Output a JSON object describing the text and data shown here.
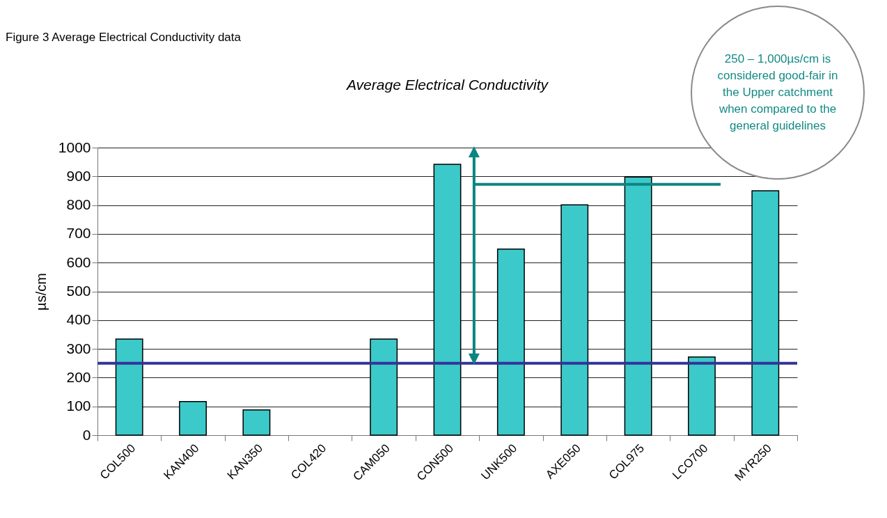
{
  "chart_data": {
    "type": "bar",
    "title": "Average Electrical Conductivity",
    "ylabel": "µs/cm",
    "categories": [
      "COL500",
      "KAN400",
      "KAN350",
      "COL420",
      "CAM050",
      "CON500",
      "UNK500",
      "AXE050",
      "COL975",
      "LCO700",
      "MYR250"
    ],
    "values": [
      334,
      117,
      88,
      null,
      334,
      942,
      647,
      801,
      898,
      272,
      850
    ],
    "color": "#3cc9c9",
    "ylim": [
      0,
      1000
    ],
    "yticks": [
      0,
      100,
      200,
      300,
      400,
      500,
      600,
      700,
      800,
      900,
      1000
    ],
    "grid": "y",
    "ref_lines": [
      {
        "axis": "y",
        "value": 250,
        "color": "#333399"
      }
    ],
    "annotations": [
      "Figure 3 Average Electrical Conductivity data",
      "250 – 1,000µs/cm is considered good-fair in the Upper catchment when compared to the general guidelines"
    ]
  }
}
